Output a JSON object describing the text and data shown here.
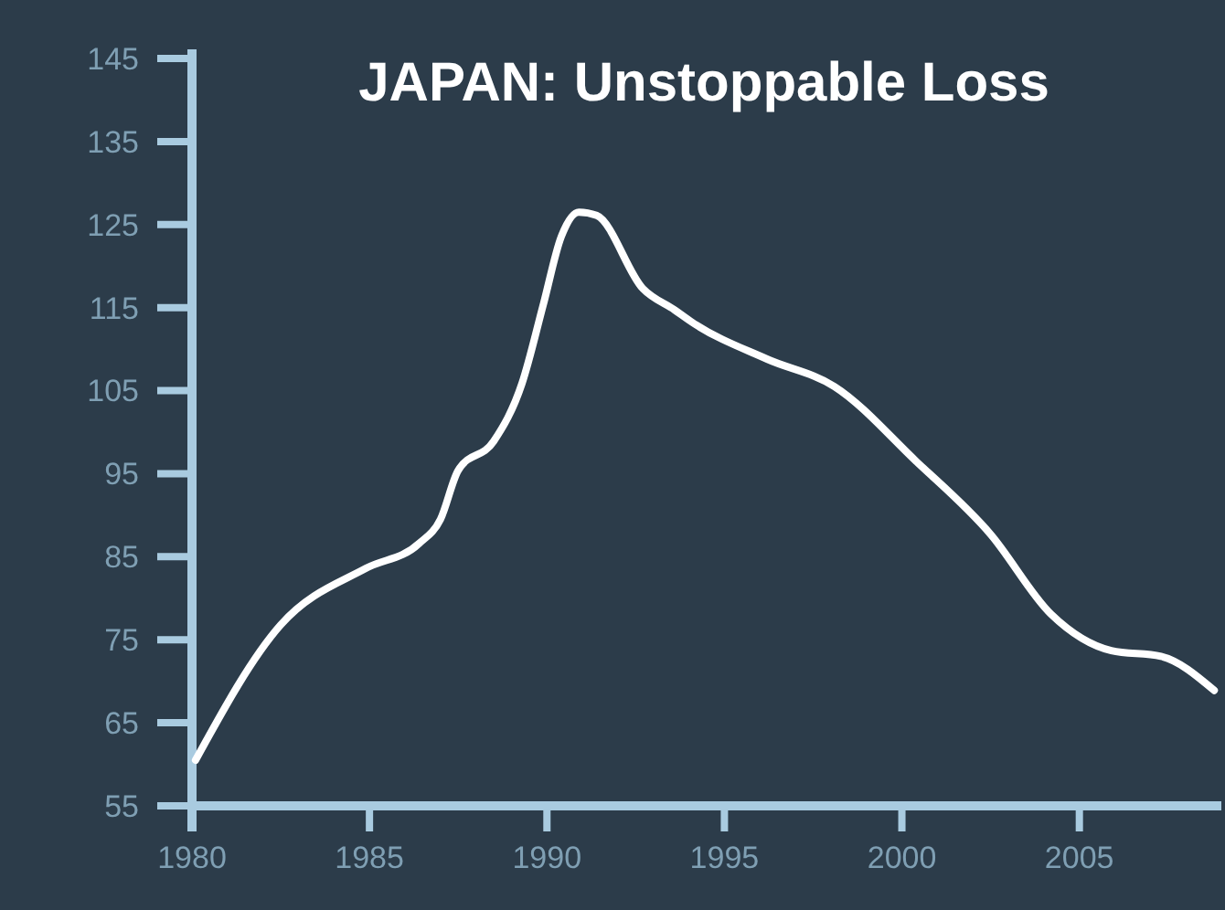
{
  "chart_data": {
    "type": "line",
    "title": "JAPAN: Unstoppable Loss",
    "x": [
      1980.1,
      1982.5,
      1984.9,
      1986.4,
      1987.0,
      1987.5,
      1988.5,
      1989.3,
      1989.9,
      1990.4,
      1990.9,
      1991.4,
      1992.7,
      1993.6,
      1994.1,
      1996.2,
      1998.1,
      2000.4,
      2002.5,
      2004.2,
      2005.9,
      2007.3,
      2008.8
    ],
    "series": [
      {
        "color": "#ffffff",
        "values": [
          60.5,
          76.8,
          83.6,
          86.6,
          89.5,
          95.4,
          98.9,
          105.9,
          115.4,
          123.5,
          126.5,
          126.1,
          117.3,
          114.7,
          113.2,
          108.8,
          105.5,
          96.5,
          87.7,
          78.1,
          73.7,
          73.0,
          68.9
        ]
      }
    ],
    "xlim": [
      1980,
      2009
    ],
    "xticks": [
      1980,
      1985,
      1990,
      1995,
      2000,
      2005
    ],
    "ylim": [
      55,
      145
    ],
    "yticks": [
      55,
      65,
      75,
      85,
      95,
      105,
      115,
      125,
      135,
      145
    ],
    "grid": false,
    "marker": "none",
    "line_style": "solid"
  }
}
